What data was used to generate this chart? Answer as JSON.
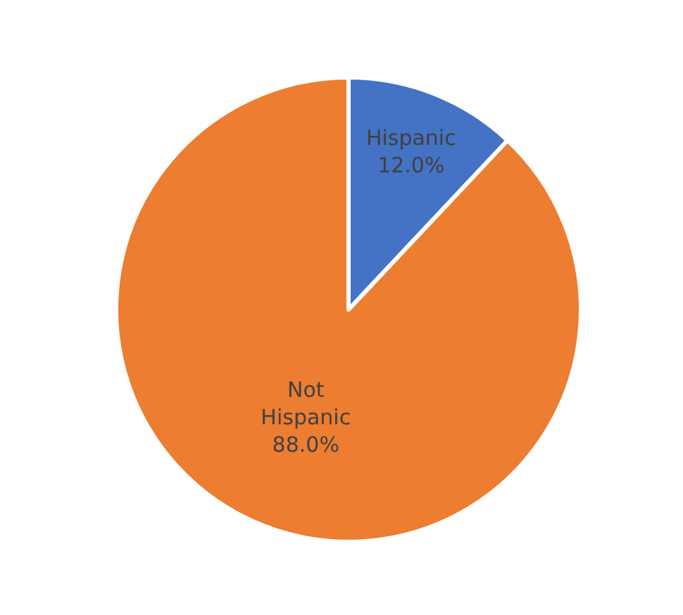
{
  "chart_data": {
    "type": "pie",
    "categories": [
      "Hispanic",
      "Not Hispanic"
    ],
    "values": [
      12.0,
      88.0
    ],
    "colors": [
      "#4472c4",
      "#ed7d31"
    ],
    "value_labels": [
      "12.0%",
      "88.0%"
    ],
    "legend": false
  }
}
